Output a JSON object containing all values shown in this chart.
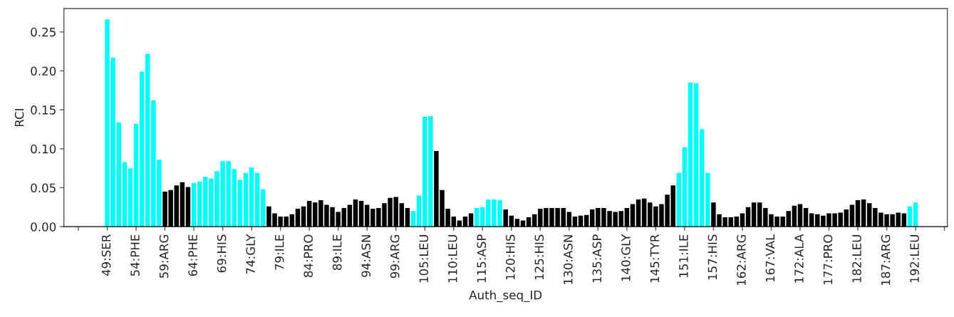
{
  "chart_data": {
    "type": "bar",
    "xlabel": "Auth_seq_ID",
    "ylabel": "RCI",
    "categories": [
      "49:SER",
      null,
      null,
      null,
      null,
      "54:PHE",
      null,
      null,
      null,
      null,
      "59:ARG",
      null,
      null,
      null,
      null,
      "64:PHE",
      null,
      null,
      null,
      null,
      "69:HIS",
      null,
      null,
      null,
      null,
      "74:GLY",
      null,
      null,
      null,
      null,
      "79:ILE",
      null,
      null,
      null,
      null,
      "84:PRO",
      null,
      null,
      null,
      null,
      "89:ILE",
      null,
      null,
      null,
      null,
      "94:ASN",
      null,
      null,
      null,
      null,
      "99:ARG",
      null,
      null,
      null,
      null,
      "105:LEU",
      null,
      null,
      null,
      null,
      "110:LEU",
      null,
      null,
      null,
      null,
      "115:ASP",
      null,
      null,
      null,
      null,
      "120:HIS",
      null,
      null,
      null,
      null,
      "125:HIS",
      null,
      null,
      null,
      null,
      "130:ASN",
      null,
      null,
      null,
      null,
      "135:ASP",
      null,
      null,
      null,
      null,
      "140:GLY",
      null,
      null,
      null,
      null,
      "145:TYR",
      null,
      null,
      null,
      null,
      "151:ILE",
      null,
      null,
      null,
      null,
      "157:HIS",
      null,
      null,
      null,
      null,
      "162:ARG",
      null,
      null,
      null,
      null,
      "167:VAL",
      null,
      null,
      null,
      null,
      "172:ALA",
      null,
      null,
      null,
      null,
      "177:PRO",
      null,
      null,
      null,
      null,
      "182:LEU",
      null,
      null,
      null,
      null,
      "187:ARG",
      null,
      null,
      null,
      null,
      "192:LEU"
    ],
    "values": [
      0.266,
      0.217,
      0.134,
      0.083,
      0.075,
      0.132,
      0.199,
      0.222,
      0.162,
      0.086,
      0.045,
      0.047,
      0.053,
      0.057,
      0.051,
      0.056,
      0.058,
      0.064,
      0.062,
      0.071,
      0.084,
      0.084,
      0.074,
      0.06,
      0.069,
      0.076,
      0.069,
      0.048,
      0.026,
      0.017,
      0.013,
      0.013,
      0.016,
      0.023,
      0.026,
      0.033,
      0.031,
      0.034,
      0.028,
      0.025,
      0.019,
      0.024,
      0.028,
      0.035,
      0.033,
      0.028,
      0.023,
      0.024,
      0.03,
      0.037,
      0.038,
      0.03,
      0.024,
      0.02,
      0.04,
      0.141,
      0.142,
      0.097,
      0.047,
      0.023,
      0.013,
      0.008,
      0.013,
      0.017,
      0.024,
      0.025,
      0.035,
      0.035,
      0.034,
      0.022,
      0.014,
      0.01,
      0.008,
      0.012,
      0.016,
      0.023,
      0.024,
      0.024,
      0.024,
      0.024,
      0.019,
      0.013,
      0.014,
      0.015,
      0.022,
      0.024,
      0.024,
      0.02,
      0.019,
      0.02,
      0.024,
      0.029,
      0.035,
      0.036,
      0.031,
      0.026,
      0.029,
      0.041,
      0.053,
      0.069,
      0.102,
      0.185,
      0.184,
      0.125,
      0.069,
      0.031,
      0.016,
      0.012,
      0.012,
      0.013,
      0.017,
      0.025,
      0.031,
      0.031,
      0.024,
      0.016,
      0.013,
      0.013,
      0.02,
      0.027,
      0.029,
      0.024,
      0.017,
      0.016,
      0.014,
      0.017,
      0.017,
      0.018,
      0.022,
      0.028,
      0.034,
      0.035,
      0.03,
      0.024,
      0.018,
      0.016,
      0.016,
      0.018,
      0.017,
      0.026,
      0.031
    ],
    "colors": [
      "#00ffff",
      "#00ffff",
      "#00ffff",
      "#00ffff",
      "#00ffff",
      "#00ffff",
      "#00ffff",
      "#00ffff",
      "#00ffff",
      "#00ffff",
      "#000000",
      "#000000",
      "#000000",
      "#000000",
      "#000000",
      "#00ffff",
      "#00ffff",
      "#00ffff",
      "#00ffff",
      "#00ffff",
      "#00ffff",
      "#00ffff",
      "#00ffff",
      "#00ffff",
      "#00ffff",
      "#00ffff",
      "#00ffff",
      "#00ffff",
      "#000000",
      "#000000",
      "#000000",
      "#000000",
      "#000000",
      "#000000",
      "#000000",
      "#000000",
      "#000000",
      "#000000",
      "#000000",
      "#000000",
      "#000000",
      "#000000",
      "#000000",
      "#000000",
      "#000000",
      "#000000",
      "#000000",
      "#000000",
      "#000000",
      "#000000",
      "#000000",
      "#000000",
      "#000000",
      "#00ffff",
      "#00ffff",
      "#00ffff",
      "#00ffff",
      "#000000",
      "#000000",
      "#000000",
      "#000000",
      "#000000",
      "#000000",
      "#000000",
      "#00ffff",
      "#00ffff",
      "#00ffff",
      "#00ffff",
      "#00ffff",
      "#000000",
      "#000000",
      "#000000",
      "#000000",
      "#000000",
      "#000000",
      "#000000",
      "#000000",
      "#000000",
      "#000000",
      "#000000",
      "#000000",
      "#000000",
      "#000000",
      "#000000",
      "#000000",
      "#000000",
      "#000000",
      "#000000",
      "#000000",
      "#000000",
      "#000000",
      "#000000",
      "#000000",
      "#000000",
      "#000000",
      "#000000",
      "#000000",
      "#000000",
      "#000000",
      "#00ffff",
      "#00ffff",
      "#00ffff",
      "#00ffff",
      "#00ffff",
      "#00ffff",
      "#000000",
      "#000000",
      "#000000",
      "#000000",
      "#000000",
      "#000000",
      "#000000",
      "#000000",
      "#000000",
      "#000000",
      "#000000",
      "#000000",
      "#000000",
      "#000000",
      "#000000",
      "#000000",
      "#000000",
      "#000000",
      "#000000",
      "#000000",
      "#000000",
      "#000000",
      "#000000",
      "#000000",
      "#000000",
      "#000000",
      "#000000",
      "#000000",
      "#000000",
      "#000000",
      "#000000",
      "#000000",
      "#000000",
      "#000000",
      "#00ffff",
      "#00ffff"
    ],
    "ylim": [
      0,
      0.28
    ],
    "yticks": [
      {
        "value": 0,
        "label": "0.00"
      },
      {
        "value": 0.05,
        "label": "0.05"
      },
      {
        "value": 0.1,
        "label": "0.10"
      },
      {
        "value": 0.15,
        "label": "0.15"
      },
      {
        "value": 0.2,
        "label": "0.20"
      },
      {
        "value": 0.25,
        "label": "0.25"
      }
    ],
    "grid": false
  }
}
